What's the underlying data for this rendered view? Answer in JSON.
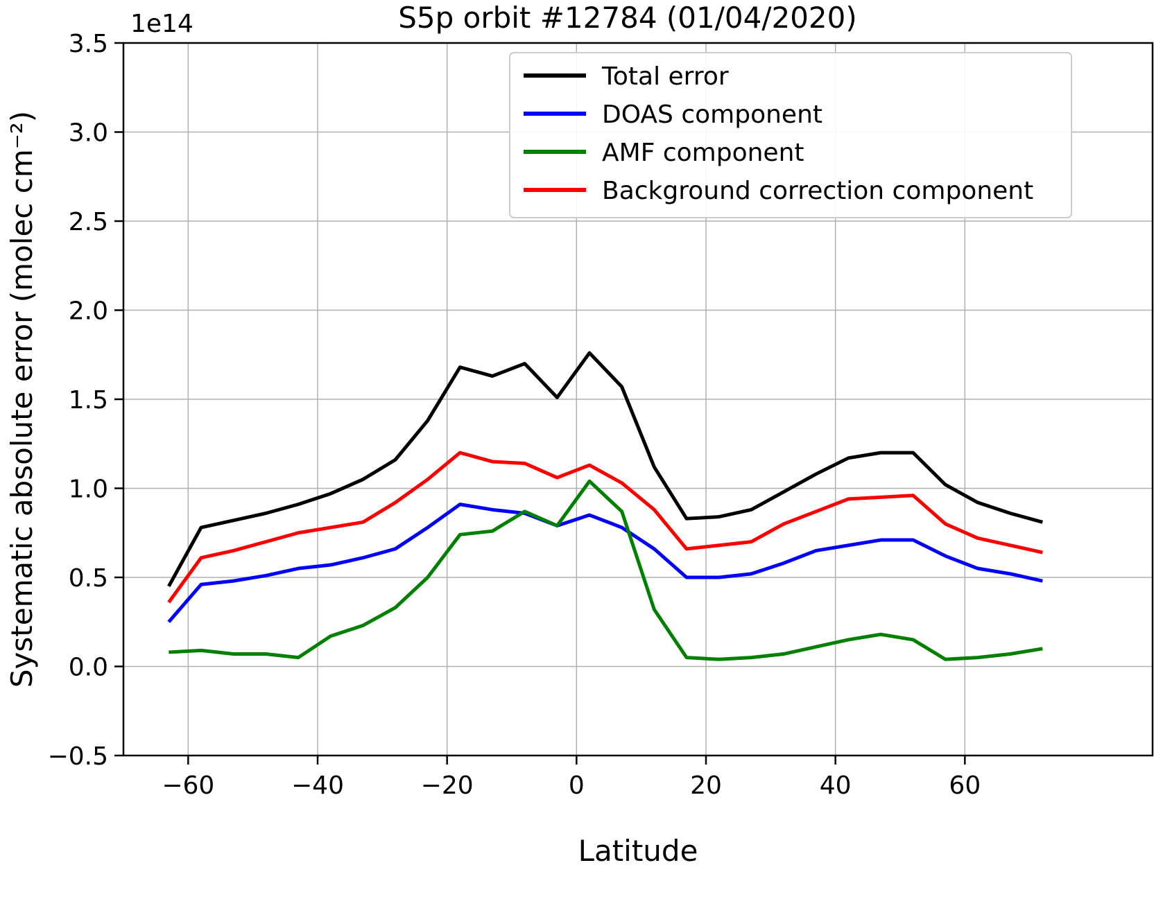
{
  "title": "S5p orbit #12784 (01/04/2020)",
  "chart_data": {
    "type": "line",
    "title": "S5p orbit #12784 (01/04/2020)",
    "xlabel": "Latitude",
    "ylabel": "Systematic absolute error (molec cm⁻²)",
    "y_offset_text": "1e14",
    "xlim": [
      -70,
      89
    ],
    "ylim": [
      -0.5,
      3.5
    ],
    "xticks": [
      -60,
      -40,
      -20,
      0,
      20,
      40,
      60
    ],
    "yticks": [
      -0.5,
      0.0,
      0.5,
      1.0,
      1.5,
      2.0,
      2.5,
      3.0,
      3.5
    ],
    "grid": true,
    "legend_position": "upper center-right",
    "x": [
      -63,
      -58,
      -53,
      -48,
      -43,
      -38,
      -33,
      -28,
      -23,
      -18,
      -13,
      -8,
      -3,
      2,
      7,
      12,
      17,
      22,
      27,
      32,
      37,
      42,
      47,
      52,
      57,
      62,
      67,
      72
    ],
    "series": [
      {
        "name": "Total error",
        "color": "#000000",
        "values": [
          0.45,
          0.78,
          0.82,
          0.86,
          0.91,
          0.97,
          1.05,
          1.16,
          1.38,
          1.68,
          1.63,
          1.7,
          1.51,
          1.76,
          1.57,
          1.12,
          0.83,
          0.84,
          0.88,
          0.98,
          1.08,
          1.17,
          1.2,
          1.2,
          1.02,
          0.92,
          0.86,
          0.81
        ]
      },
      {
        "name": "DOAS component",
        "color": "#0000ff",
        "values": [
          0.25,
          0.46,
          0.48,
          0.51,
          0.55,
          0.57,
          0.61,
          0.66,
          0.78,
          0.91,
          0.88,
          0.86,
          0.79,
          0.85,
          0.78,
          0.66,
          0.5,
          0.5,
          0.52,
          0.58,
          0.65,
          0.68,
          0.71,
          0.71,
          0.62,
          0.55,
          0.52,
          0.48
        ]
      },
      {
        "name": "AMF component",
        "color": "#008000",
        "values": [
          0.08,
          0.09,
          0.07,
          0.07,
          0.05,
          0.17,
          0.23,
          0.33,
          0.5,
          0.74,
          0.76,
          0.87,
          0.79,
          1.04,
          0.87,
          0.32,
          0.05,
          0.04,
          0.05,
          0.07,
          0.11,
          0.15,
          0.18,
          0.15,
          0.04,
          0.05,
          0.07,
          0.1
        ]
      },
      {
        "name": "Background correction component",
        "color": "#ff0000",
        "values": [
          0.36,
          0.61,
          0.65,
          0.7,
          0.75,
          0.78,
          0.81,
          0.92,
          1.05,
          1.2,
          1.15,
          1.14,
          1.06,
          1.13,
          1.03,
          0.88,
          0.66,
          0.68,
          0.7,
          0.8,
          0.87,
          0.94,
          0.95,
          0.96,
          0.8,
          0.72,
          0.68,
          0.64
        ]
      }
    ]
  }
}
